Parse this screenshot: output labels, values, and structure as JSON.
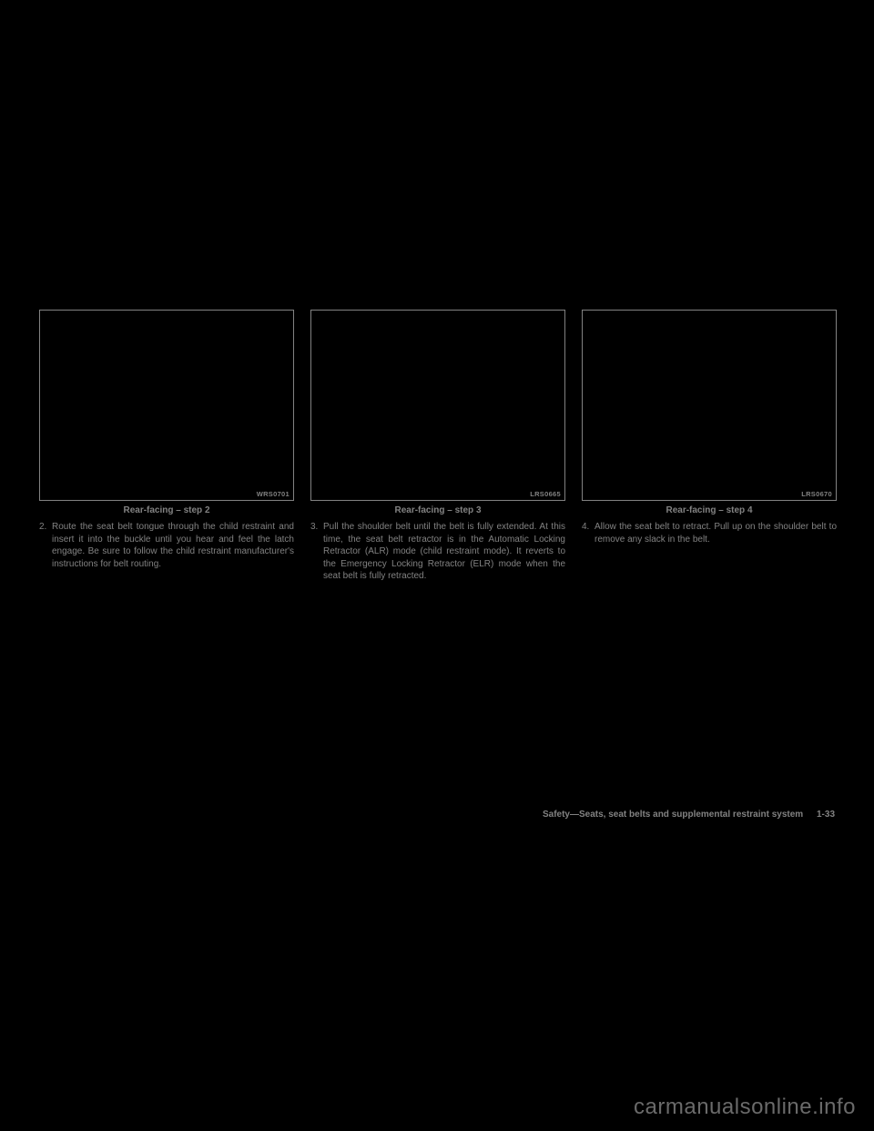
{
  "columns": [
    {
      "figure_code": "WRS0701",
      "caption": "Rear-facing – step 2",
      "list_num": "2.",
      "list_text": "Route the seat belt tongue through the child restraint and insert it into the buckle until you hear and feel the latch engage. Be sure to follow the child restraint manufacturer's instructions for belt routing."
    },
    {
      "figure_code": "LRS0665",
      "caption": "Rear-facing – step 3",
      "list_num": "3.",
      "list_text": "Pull the shoulder belt until the belt is fully extended. At this time, the seat belt retractor is in the Automatic Locking Retractor (ALR) mode (child restraint mode). It reverts to the Emergency Locking Retractor (ELR) mode when the seat belt is fully retracted."
    },
    {
      "figure_code": "LRS0670",
      "caption": "Rear-facing – step 4",
      "list_num": "4.",
      "list_text": "Allow the seat belt to retract. Pull up on the shoulder belt to remove any slack in the belt."
    }
  ],
  "footer_section": "Safety—Seats, seat belts and supplemental restraint system",
  "footer_page": "1-33",
  "watermark": "carmanualsonline.info"
}
